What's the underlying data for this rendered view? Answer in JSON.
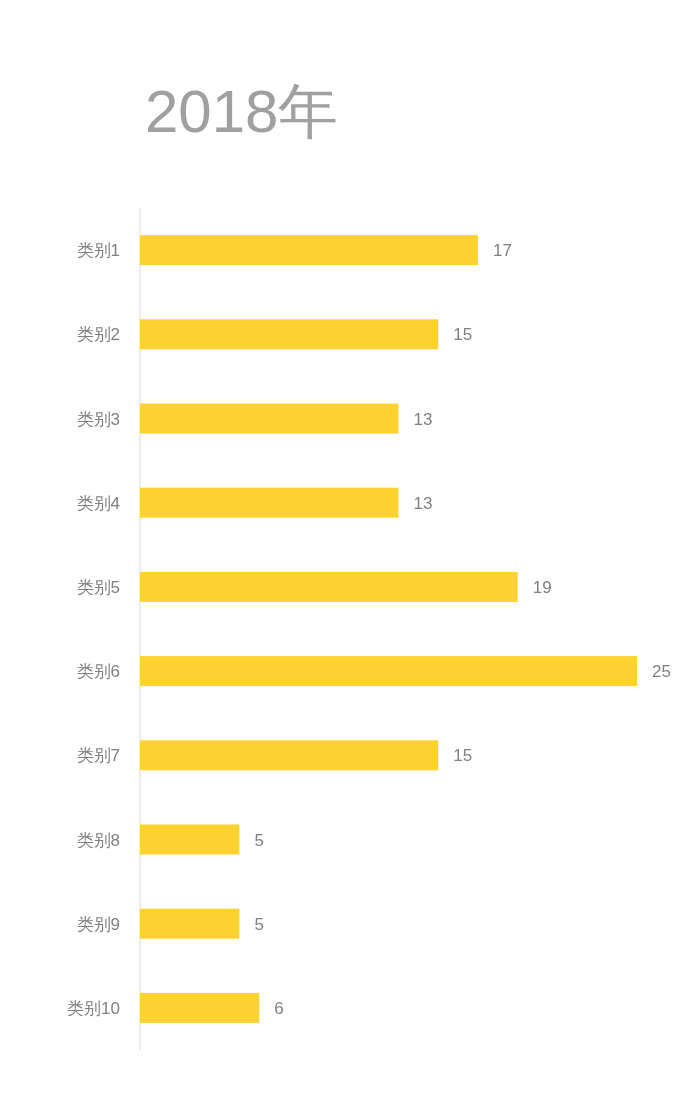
{
  "chart_data": {
    "type": "bar",
    "title": "2018年",
    "orientation": "horizontal",
    "data_labels": true,
    "color": "#fdd231",
    "categories": [
      "类别1",
      "类别2",
      "类别3",
      "类别4",
      "类别5",
      "类别6",
      "类别7",
      "类别8",
      "类别9",
      "类别10"
    ],
    "values": [
      17,
      15,
      13,
      13,
      19,
      25,
      15,
      5,
      5,
      6
    ]
  }
}
